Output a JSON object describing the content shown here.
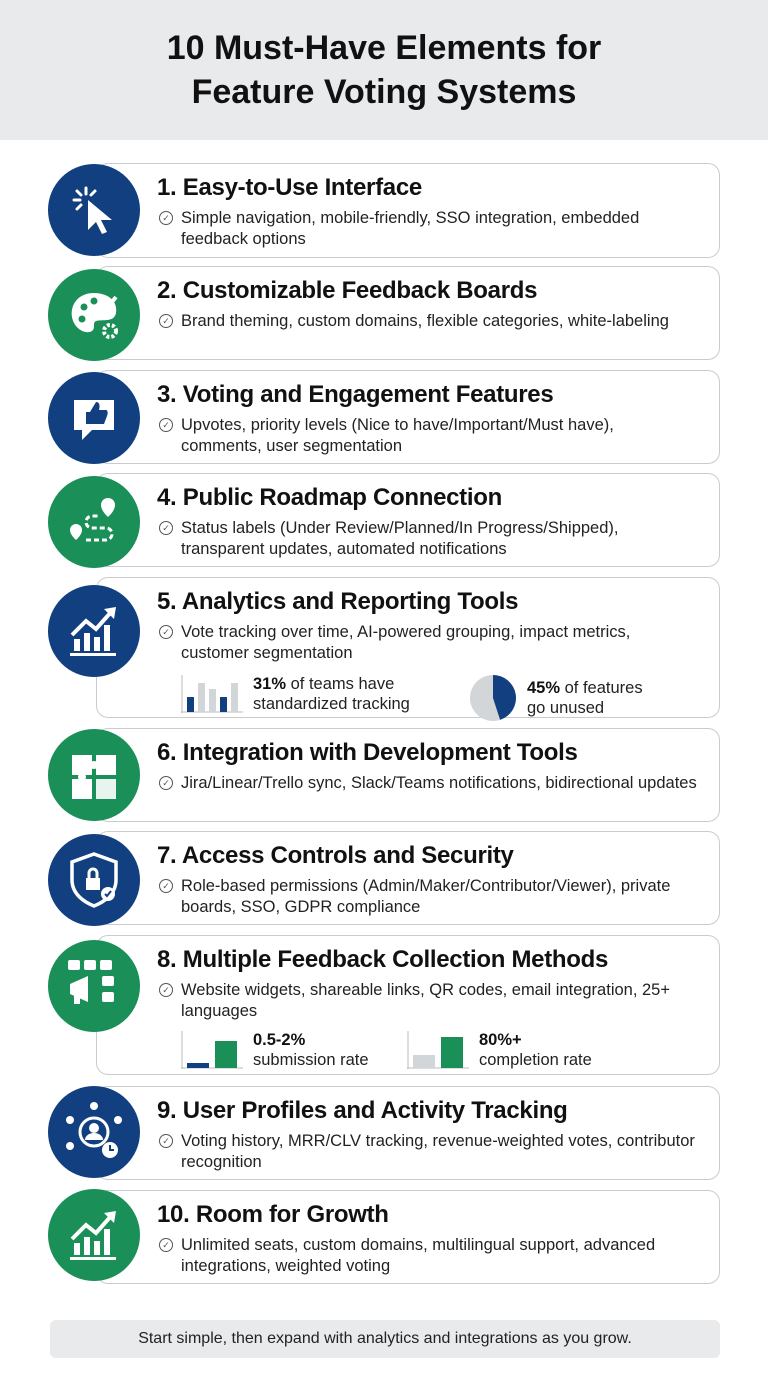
{
  "title": {
    "line1": "10 Must-Have Elements for",
    "line2": "Feature Voting Systems"
  },
  "colors": {
    "navy": "#123f7f",
    "green": "#1a8f58",
    "gray": "#d3d6d9"
  },
  "items": [
    {
      "title": "1. Easy-to-Use Interface",
      "desc": "Simple navigation, mobile-friendly, SSO integration, embedded feedback options",
      "icon": "cursor-click-icon"
    },
    {
      "title": "2. Customizable Feedback Boards",
      "desc": "Brand theming, custom domains, flexible categories, white-labeling",
      "icon": "palette-gear-icon"
    },
    {
      "title": "3. Voting and Engagement Features",
      "desc": "Upvotes, priority levels (Nice to have/Important/Must have), comments, user segmentation",
      "icon": "thumbs-up-chat-icon"
    },
    {
      "title": "4. Public Roadmap Connection",
      "desc": "Status labels (Under Review/Planned/In Progress/Shipped), transparent updates, automated notifications",
      "icon": "roadmap-route-icon"
    },
    {
      "title": "5. Analytics and Reporting Tools",
      "desc": "Vote tracking over time, AI-powered grouping, impact metrics, customer segmentation",
      "icon": "growth-chart-icon",
      "stats": [
        {
          "value": "31%",
          "text1": "of teams have",
          "text2": "standardized tracking"
        },
        {
          "value": "45%",
          "text1": "of features",
          "text2": "go unused",
          "fraction": 0.45
        }
      ]
    },
    {
      "title": "6. Integration with Development Tools",
      "desc": "Jira/Linear/Trello sync, Slack/Teams notifications, bidirectional updates",
      "icon": "puzzle-icon"
    },
    {
      "title": "7. Access Controls and Security",
      "desc": "Role-based permissions (Admin/Maker/Contributor/Viewer), private boards, SSO, GDPR compliance",
      "icon": "shield-lock-icon"
    },
    {
      "title": "8. Multiple Feedback Collection Methods",
      "desc": "Website widgets, shareable links, QR codes, email integration, 25+ languages",
      "icon": "megaphone-channels-icon",
      "stats": [
        {
          "value": "0.5-2%",
          "text2": "submission rate"
        },
        {
          "value": "80%+",
          "text2": "completion rate"
        }
      ]
    },
    {
      "title": "9. User Profiles and Activity Tracking",
      "desc": "Voting history, MRR/CLV tracking, revenue-weighted votes, contributor recognition",
      "icon": "user-network-icon"
    },
    {
      "title": "10. Room for Growth",
      "desc": "Unlimited seats, custom domains, multilingual support, advanced integrations, weighted voting",
      "icon": "growth-chart-icon"
    }
  ],
  "footer": "Start simple, then expand with analytics and integrations as you grow."
}
